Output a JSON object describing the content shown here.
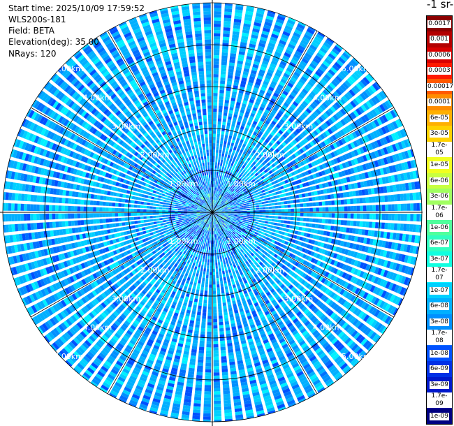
{
  "header": {
    "start_time": "Start time: 2025/10/09 17:59:52",
    "device": "WLS200s-181",
    "field": "Field: BETA",
    "elevation": "Elevation(deg): 35.00",
    "nrays": "NRays: 120"
  },
  "colorbar": {
    "unit_label": "-1 sr-",
    "ticks": [
      "0.0017",
      "0.001",
      "0.0006",
      "0.0003",
      "0.00017",
      "0.0001",
      "6e-05",
      "3e-05",
      "1.7e-05",
      "1e-05",
      "6e-06",
      "3e-06",
      "1.7e-06",
      "1e-06",
      "6e-07",
      "3e-07",
      "1.7e-07",
      "1e-07",
      "6e-08",
      "3e-08",
      "1.7e-08",
      "1e-08",
      "6e-09",
      "3e-09",
      "1.7e-09",
      "1e-09"
    ],
    "colors": [
      "#8b0000",
      "#b30000",
      "#d90000",
      "#ff1a00",
      "#ff5a00",
      "#ff8c00",
      "#ffb000",
      "#ffd200",
      "#ffee00",
      "#f0ff20",
      "#c8ff40",
      "#a0ff60",
      "#78ff80",
      "#50ff9c",
      "#30ffc0",
      "#10ffe0",
      "#00f0ff",
      "#00d0ff",
      "#00b0ff",
      "#0090ff",
      "#0070ff",
      "#0050ff",
      "#0030e6",
      "#0018cc",
      "#0008a6",
      "#000080"
    ]
  },
  "chart_data": {
    "type": "heatmap",
    "projection": "polar PPI",
    "field": "BETA",
    "elevation_deg": 35.0,
    "nrays": 120,
    "range_rings_km": [
      1,
      2,
      3,
      4,
      5
    ],
    "range_ring_labels": [
      "1.00km",
      "2.00km",
      "3.00km",
      "4.00km",
      "5.00km"
    ],
    "radial_lines_deg": [
      0,
      30,
      60,
      90,
      120,
      150,
      180,
      210,
      240,
      270,
      300,
      330
    ],
    "dominant_value_range": [
      "1e-08",
      "1.7e-07"
    ],
    "typical_value": "6e-08"
  }
}
